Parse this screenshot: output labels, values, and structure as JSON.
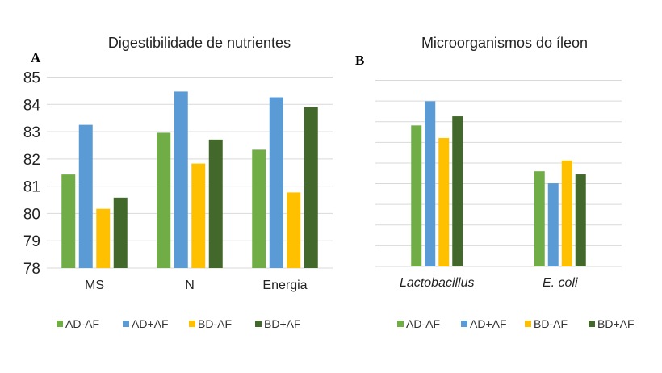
{
  "chart_data": [
    {
      "panel_label": "A",
      "type": "bar",
      "title": "Digestibilidade de nutrientes",
      "categories": [
        "MS",
        "N",
        "Energia"
      ],
      "ylim": [
        78,
        85
      ],
      "yticks": [
        78,
        79,
        80,
        81,
        82,
        83,
        84,
        85
      ],
      "grid": true,
      "legend_position": "bottom",
      "series": [
        {
          "name": "AD-AF",
          "color": "#70ad47",
          "values": [
            81.43,
            82.96,
            82.34
          ]
        },
        {
          "name": "AD+AF",
          "color": "#5b9bd5",
          "values": [
            83.25,
            84.47,
            84.26
          ]
        },
        {
          "name": "BD-AF",
          "color": "#ffc000",
          "values": [
            80.17,
            81.83,
            80.77
          ]
        },
        {
          "name": "BD+AF",
          "color": "#43682b",
          "values": [
            80.58,
            82.71,
            83.9
          ]
        }
      ]
    },
    {
      "panel_label": "B",
      "type": "bar",
      "title": "Microorganismos do íleon",
      "categories": [
        "Lactobacillus",
        "E. coli"
      ],
      "ylim": [
        0,
        9
      ],
      "yticks_labeled": false,
      "grid": true,
      "legend_position": "bottom",
      "series": [
        {
          "name": "AD-AF",
          "color": "#70ad47",
          "values": [
            6.82,
            4.6
          ]
        },
        {
          "name": "AD+AF",
          "color": "#5b9bd5",
          "values": [
            7.99,
            4.02
          ]
        },
        {
          "name": "BD-AF",
          "color": "#ffc000",
          "values": [
            6.21,
            5.12
          ]
        },
        {
          "name": "BD+AF",
          "color": "#43682b",
          "values": [
            7.26,
            4.45
          ]
        }
      ]
    }
  ]
}
